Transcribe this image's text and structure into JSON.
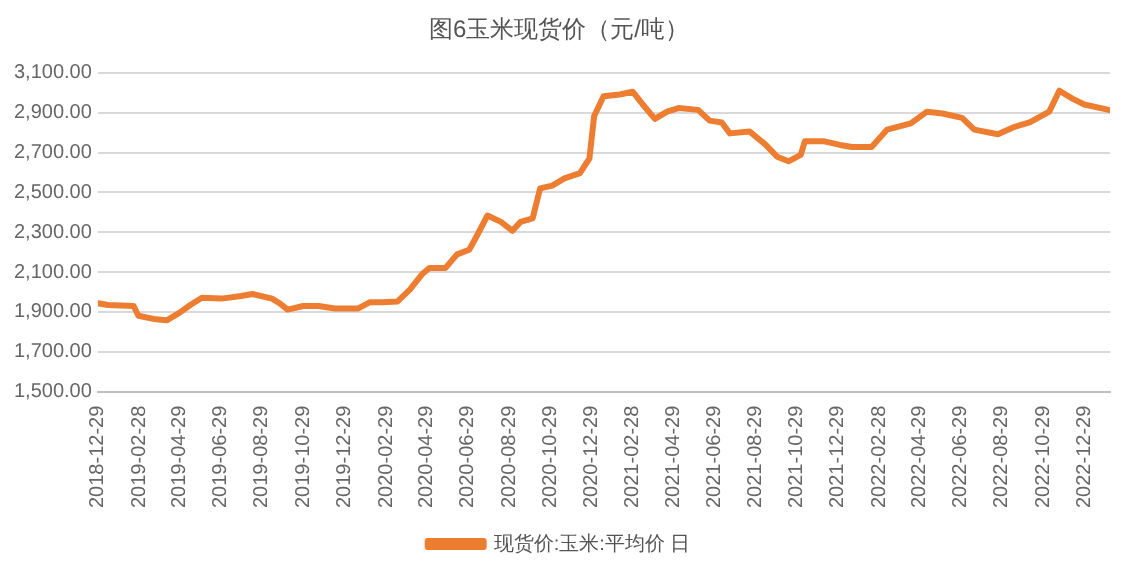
{
  "chart_data": {
    "type": "line",
    "title": "图6玉米现货价（元/吨）",
    "x": [
      "2018-12-29",
      "2019-01-13",
      "2019-02-20",
      "2019-02-27",
      "2019-03-25",
      "2019-04-10",
      "2019-04-28",
      "2019-05-15",
      "2019-06-01",
      "2019-06-30",
      "2019-07-29",
      "2019-08-15",
      "2019-09-13",
      "2019-09-24",
      "2019-10-06",
      "2019-10-29",
      "2019-11-21",
      "2019-12-15",
      "2020-01-18",
      "2020-02-05",
      "2020-02-23",
      "2020-03-17",
      "2020-04-04",
      "2020-04-22",
      "2020-05-03",
      "2020-05-27",
      "2020-06-13",
      "2020-07-01",
      "2020-07-12",
      "2020-07-28",
      "2020-08-17",
      "2020-09-03",
      "2020-09-15",
      "2020-10-03",
      "2020-10-14",
      "2020-11-01",
      "2020-11-19",
      "2020-12-12",
      "2020-12-26",
      "2021-01-02",
      "2021-01-16",
      "2021-02-09",
      "2021-02-28",
      "2021-03-15",
      "2021-04-02",
      "2021-04-20",
      "2021-05-07",
      "2021-06-05",
      "2021-06-22",
      "2021-07-10",
      "2021-07-22",
      "2021-08-20",
      "2021-09-12",
      "2021-09-30",
      "2021-10-17",
      "2021-11-04",
      "2021-11-10",
      "2021-12-09",
      "2022-01-01",
      "2022-01-19",
      "2022-02-17",
      "2022-03-12",
      "2022-04-16",
      "2022-05-10",
      "2022-06-02",
      "2022-07-01",
      "2022-07-19",
      "2022-08-23",
      "2022-09-16",
      "2022-10-09",
      "2022-11-07",
      "2022-11-22",
      "2022-12-12",
      "2022-12-29",
      "2023-02-03"
    ],
    "series": [
      {
        "name": "现货价:玉米:平均价 日",
        "color": "#ed7d31",
        "values": [
          1944,
          1935,
          1930,
          1881,
          1863,
          1858,
          1894,
          1935,
          1971,
          1967,
          1980,
          1990,
          1967,
          1944,
          1912,
          1930,
          1930,
          1917,
          1917,
          1949,
          1949,
          1953,
          2012,
          2089,
          2121,
          2121,
          2189,
          2212,
          2280,
          2384,
          2352,
          2307,
          2352,
          2370,
          2520,
          2534,
          2570,
          2597,
          2670,
          2883,
          2982,
          2991,
          3005,
          2941,
          2869,
          2905,
          2923,
          2914,
          2860,
          2851,
          2796,
          2806,
          2742,
          2679,
          2656,
          2688,
          2756,
          2756,
          2738,
          2728,
          2728,
          2815,
          2846,
          2905,
          2896,
          2874,
          2815,
          2792,
          2828,
          2851,
          2905,
          3010,
          2969,
          2941,
          2914
        ]
      }
    ],
    "xlim": [
      "2018-12-29",
      "2023-02-05"
    ],
    "xticks": [
      "2018-12-29",
      "2019-02-28",
      "2019-04-29",
      "2019-06-29",
      "2019-08-29",
      "2019-10-29",
      "2019-12-29",
      "2020-02-29",
      "2020-04-29",
      "2020-06-29",
      "2020-08-29",
      "2020-10-29",
      "2020-12-29",
      "2021-02-28",
      "2021-04-29",
      "2021-06-29",
      "2021-08-29",
      "2021-10-29",
      "2021-12-29",
      "2022-02-28",
      "2022-04-29",
      "2022-06-29",
      "2022-08-29",
      "2022-10-29",
      "2022-12-29"
    ],
    "ylim": [
      1500,
      3100
    ],
    "yticks": [
      {
        "value": 1500,
        "label": "1,500.00"
      },
      {
        "value": 1700,
        "label": "1,700.00"
      },
      {
        "value": 1900,
        "label": "1,900.00"
      },
      {
        "value": 2100,
        "label": "2,100.00"
      },
      {
        "value": 2300,
        "label": "2,300.00"
      },
      {
        "value": 2500,
        "label": "2,500.00"
      },
      {
        "value": 2700,
        "label": "2,700.00"
      },
      {
        "value": 2900,
        "label": "2,900.00"
      },
      {
        "value": 3100,
        "label": "3,100.00"
      }
    ],
    "grid": "y",
    "legend": "bottom",
    "marker": "none",
    "line_style": "solid"
  }
}
